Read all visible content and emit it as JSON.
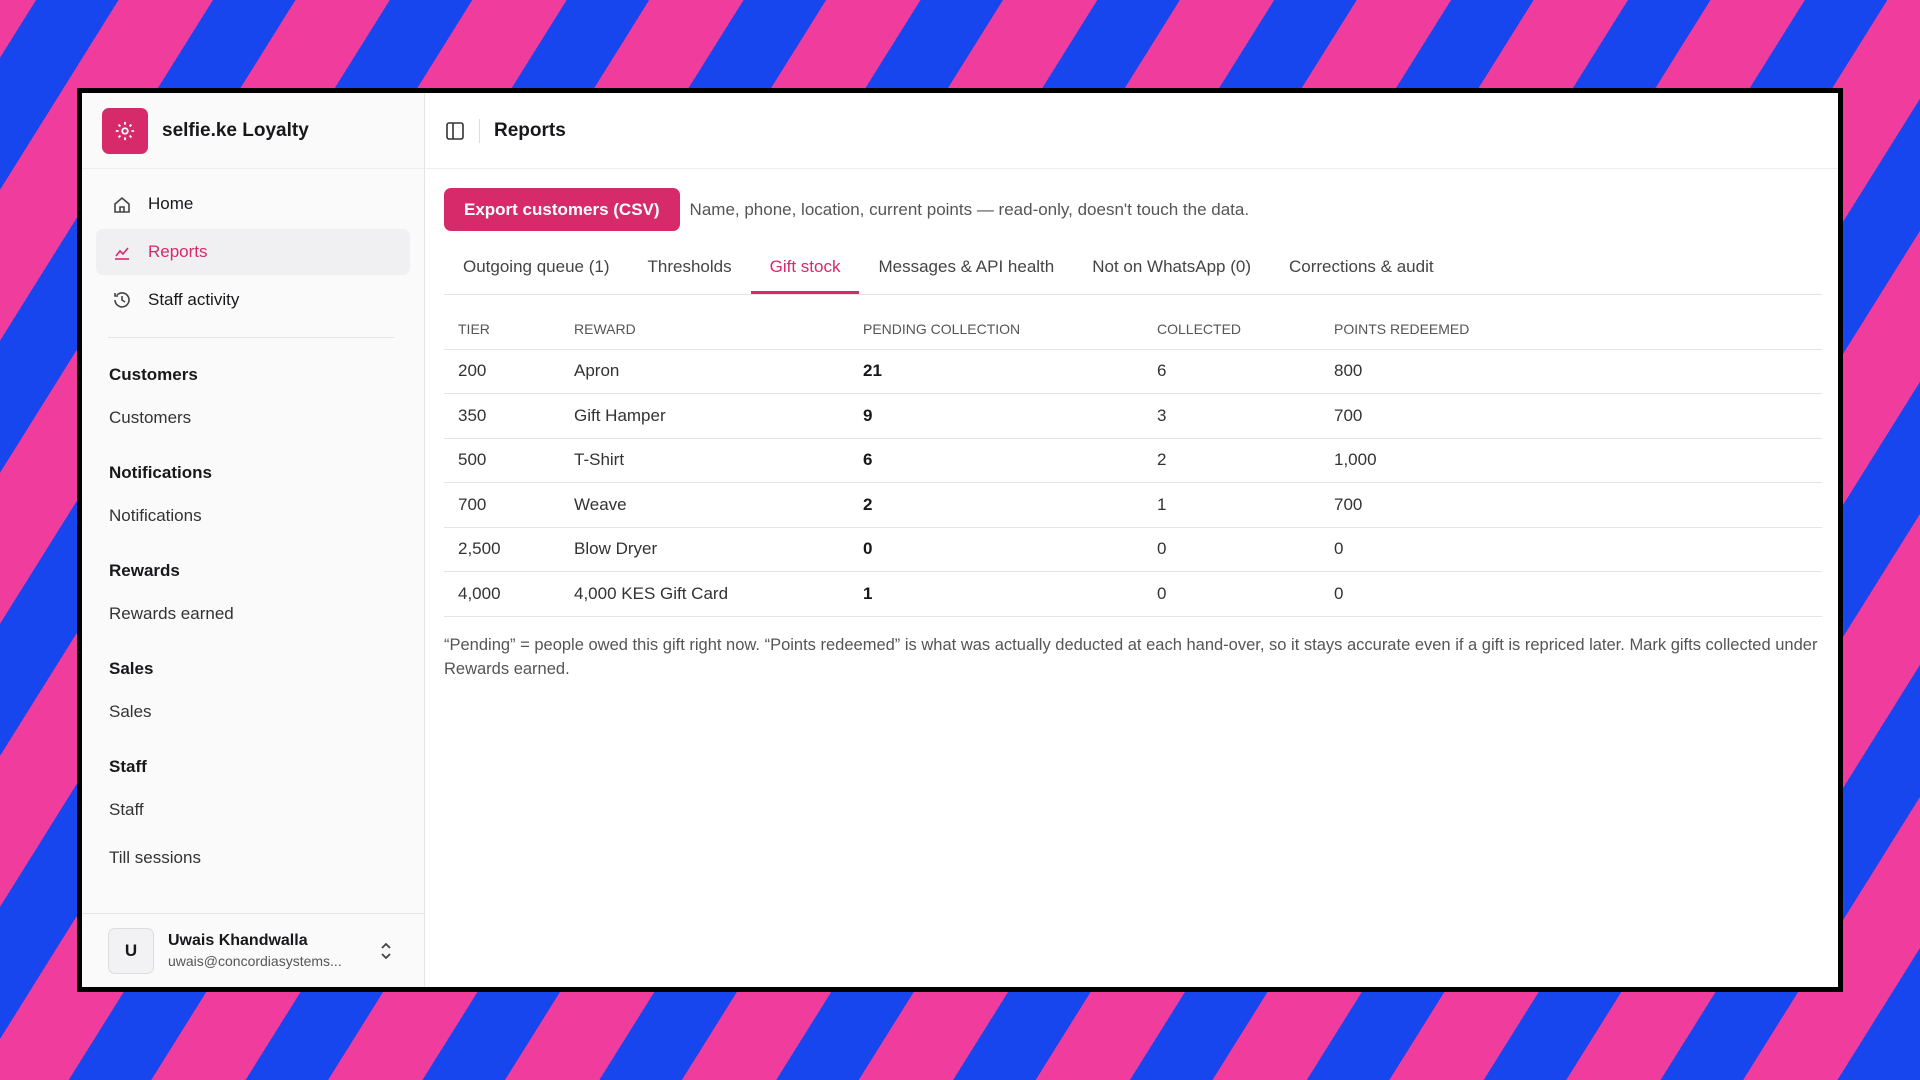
{
  "sidebar": {
    "brand": "selfie.ke Loyalty",
    "nav": [
      "Home",
      "Reports",
      "Staff activity"
    ],
    "groups": [
      {
        "title": "Customers",
        "items": [
          "Customers"
        ]
      },
      {
        "title": "Notifications",
        "items": [
          "Notifications"
        ]
      },
      {
        "title": "Rewards",
        "items": [
          "Rewards earned"
        ]
      },
      {
        "title": "Sales",
        "items": [
          "Sales"
        ]
      },
      {
        "title": "Staff",
        "items": [
          "Staff",
          "Till sessions"
        ]
      }
    ],
    "user": {
      "initial": "U",
      "name": "Uwais Khandwalla",
      "email": "uwais@concordiasystems..."
    }
  },
  "header": {
    "title": "Reports"
  },
  "export": {
    "button": "Export customers (CSV)",
    "note": "Name, phone, location, current points — read-only, doesn't touch the data."
  },
  "tabs": [
    "Outgoing queue (1)",
    "Thresholds",
    "Gift stock",
    "Messages & API health",
    "Not on WhatsApp (0)",
    "Corrections & audit"
  ],
  "table": {
    "columns": [
      "TIER",
      "REWARD",
      "PENDING COLLECTION",
      "COLLECTED",
      "POINTS REDEEMED"
    ],
    "rows": [
      [
        "200",
        "Apron",
        "21",
        "6",
        "800"
      ],
      [
        "350",
        "Gift Hamper",
        "9",
        "3",
        "700"
      ],
      [
        "500",
        "T-Shirt",
        "6",
        "2",
        "1,000"
      ],
      [
        "700",
        "Weave",
        "2",
        "1",
        "700"
      ],
      [
        "2,500",
        "Blow Dryer",
        "0",
        "0",
        "0"
      ],
      [
        "4,000",
        "4,000 KES Gift Card",
        "1",
        "0",
        "0"
      ]
    ]
  },
  "footnote": "“Pending” = people owed this gift right now. “Points redeemed” is what was actually deducted at each hand-over, so it stays accurate even if a gift is repriced later. Mark gifts collected under Rewards earned."
}
